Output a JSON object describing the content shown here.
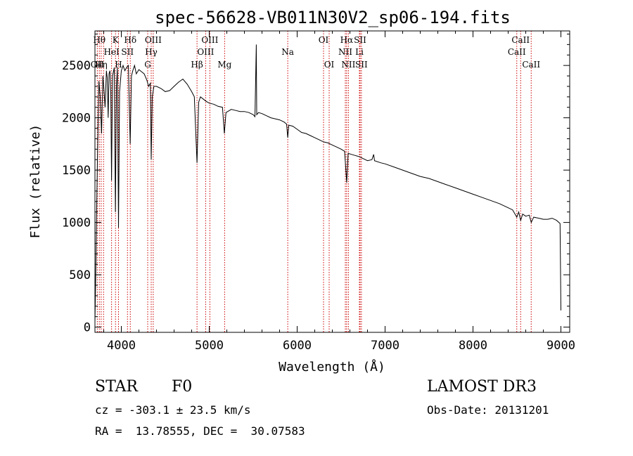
{
  "chart_data": {
    "type": "line",
    "title": "spec-56628-VB011N30V2_sp06-194.fits",
    "xlabel": "Wavelength (Å)",
    "ylabel": "Flux (relative)",
    "xlim": [
      3700,
      9100
    ],
    "ylim": [
      -50,
      2830
    ],
    "xticks": [
      4000,
      5000,
      6000,
      7000,
      8000,
      9000
    ],
    "yticks": [
      0,
      500,
      1000,
      1500,
      2000,
      2500
    ],
    "spectrum_points": [
      [
        3700,
        50
      ],
      [
        3712,
        650
      ],
      [
        3720,
        1150
      ],
      [
        3730,
        1700
      ],
      [
        3745,
        2350
      ],
      [
        3760,
        2200
      ],
      [
        3775,
        1850
      ],
      [
        3790,
        2400
      ],
      [
        3800,
        2300
      ],
      [
        3815,
        2100
      ],
      [
        3830,
        2450
      ],
      [
        3840,
        2380
      ],
      [
        3850,
        2000
      ],
      [
        3860,
        2420
      ],
      [
        3870,
        2450
      ],
      [
        3880,
        2250
      ],
      [
        3889,
        1400
      ],
      [
        3900,
        2400
      ],
      [
        3920,
        2480
      ],
      [
        3933,
        1100
      ],
      [
        3945,
        2300
      ],
      [
        3955,
        2480
      ],
      [
        3968,
        950
      ],
      [
        3980,
        2250
      ],
      [
        4000,
        2450
      ],
      [
        4020,
        2500
      ],
      [
        4040,
        2450
      ],
      [
        4060,
        2480
      ],
      [
        4080,
        2500
      ],
      [
        4101,
        1750
      ],
      [
        4115,
        2400
      ],
      [
        4130,
        2450
      ],
      [
        4150,
        2500
      ],
      [
        4170,
        2420
      ],
      [
        4200,
        2460
      ],
      [
        4230,
        2440
      ],
      [
        4260,
        2420
      ],
      [
        4290,
        2360
      ],
      [
        4310,
        2300
      ],
      [
        4330,
        2330
      ],
      [
        4340,
        1600
      ],
      [
        4352,
        2200
      ],
      [
        4370,
        2300
      ],
      [
        4400,
        2300
      ],
      [
        4450,
        2280
      ],
      [
        4500,
        2250
      ],
      [
        4550,
        2260
      ],
      [
        4600,
        2300
      ],
      [
        4650,
        2340
      ],
      [
        4700,
        2370
      ],
      [
        4750,
        2320
      ],
      [
        4800,
        2250
      ],
      [
        4830,
        2200
      ],
      [
        4861,
        1570
      ],
      [
        4880,
        2150
      ],
      [
        4900,
        2200
      ],
      [
        4930,
        2180
      ],
      [
        4960,
        2160
      ],
      [
        5000,
        2140
      ],
      [
        5050,
        2130
      ],
      [
        5100,
        2110
      ],
      [
        5150,
        2100
      ],
      [
        5172,
        1850
      ],
      [
        5190,
        2050
      ],
      [
        5250,
        2080
      ],
      [
        5300,
        2070
      ],
      [
        5350,
        2060
      ],
      [
        5400,
        2060
      ],
      [
        5450,
        2050
      ],
      [
        5500,
        2030
      ],
      [
        5520,
        2010
      ],
      [
        5535,
        2700
      ],
      [
        5540,
        2030
      ],
      [
        5560,
        2050
      ],
      [
        5600,
        2040
      ],
      [
        5650,
        2020
      ],
      [
        5700,
        2000
      ],
      [
        5750,
        1990
      ],
      [
        5800,
        1980
      ],
      [
        5850,
        1960
      ],
      [
        5880,
        1940
      ],
      [
        5893,
        1810
      ],
      [
        5905,
        1930
      ],
      [
        5950,
        1920
      ],
      [
        6000,
        1890
      ],
      [
        6050,
        1860
      ],
      [
        6100,
        1850
      ],
      [
        6150,
        1830
      ],
      [
        6200,
        1810
      ],
      [
        6250,
        1790
      ],
      [
        6300,
        1770
      ],
      [
        6350,
        1760
      ],
      [
        6400,
        1740
      ],
      [
        6450,
        1720
      ],
      [
        6500,
        1700
      ],
      [
        6540,
        1680
      ],
      [
        6563,
        1380
      ],
      [
        6580,
        1660
      ],
      [
        6620,
        1650
      ],
      [
        6660,
        1640
      ],
      [
        6700,
        1630
      ],
      [
        6750,
        1610
      ],
      [
        6800,
        1590
      ],
      [
        6850,
        1600
      ],
      [
        6870,
        1650
      ],
      [
        6880,
        1590
      ],
      [
        6950,
        1570
      ],
      [
        7000,
        1560
      ],
      [
        7100,
        1530
      ],
      [
        7200,
        1500
      ],
      [
        7300,
        1470
      ],
      [
        7400,
        1440
      ],
      [
        7500,
        1420
      ],
      [
        7600,
        1390
      ],
      [
        7700,
        1360
      ],
      [
        7800,
        1330
      ],
      [
        7900,
        1300
      ],
      [
        8000,
        1270
      ],
      [
        8100,
        1240
      ],
      [
        8200,
        1210
      ],
      [
        8300,
        1180
      ],
      [
        8400,
        1140
      ],
      [
        8450,
        1120
      ],
      [
        8498,
        1050
      ],
      [
        8520,
        1100
      ],
      [
        8542,
        1020
      ],
      [
        8565,
        1080
      ],
      [
        8600,
        1060
      ],
      [
        8640,
        1070
      ],
      [
        8662,
        1000
      ],
      [
        8690,
        1050
      ],
      [
        8750,
        1040
      ],
      [
        8800,
        1030
      ],
      [
        8850,
        1030
      ],
      [
        8900,
        1040
      ],
      [
        8950,
        1020
      ],
      [
        8990,
        990
      ],
      [
        9000,
        160
      ]
    ],
    "reference_lines": [
      {
        "wavelength": 3727,
        "label": "OII",
        "row": 3
      },
      {
        "wavelength": 3750,
        "label": "Hθ",
        "row": 1
      },
      {
        "wavelength": 3771,
        "label": "Hη",
        "row": 3
      },
      {
        "wavelength": 3798,
        "label": "",
        "row": 0
      },
      {
        "wavelength": 3889,
        "label": "HeI",
        "row": 2
      },
      {
        "wavelength": 3934,
        "label": "K",
        "row": 1
      },
      {
        "wavelength": 3968,
        "label": "H",
        "row": 3
      },
      {
        "wavelength": 4070,
        "label": "SII",
        "row": 2
      },
      {
        "wavelength": 4102,
        "label": "Hδ",
        "row": 1
      },
      {
        "wavelength": 4300,
        "label": "G",
        "row": 3
      },
      {
        "wavelength": 4340,
        "label": "Hγ",
        "row": 2
      },
      {
        "wavelength": 4363,
        "label": "OIII",
        "row": 1
      },
      {
        "wavelength": 4861,
        "label": "Hβ",
        "row": 3
      },
      {
        "wavelength": 4959,
        "label": "OIII",
        "row": 2
      },
      {
        "wavelength": 5007,
        "label": "OIII",
        "row": 1
      },
      {
        "wavelength": 5175,
        "label": "Mg",
        "row": 3
      },
      {
        "wavelength": 5893,
        "label": "Na",
        "row": 2
      },
      {
        "wavelength": 6300,
        "label": "OI",
        "row": 1
      },
      {
        "wavelength": 6364,
        "label": "OI",
        "row": 3
      },
      {
        "wavelength": 6548,
        "label": "NII",
        "row": 2
      },
      {
        "wavelength": 6563,
        "label": "Hα",
        "row": 1
      },
      {
        "wavelength": 6583,
        "label": "NII",
        "row": 3
      },
      {
        "wavelength": 6708,
        "label": "Li",
        "row": 2
      },
      {
        "wavelength": 6716,
        "label": "SII",
        "row": 1
      },
      {
        "wavelength": 6731,
        "label": "SII",
        "row": 3
      },
      {
        "wavelength": 8498,
        "label": "CaII",
        "row": 2
      },
      {
        "wavelength": 8542,
        "label": "CaII",
        "row": 1
      },
      {
        "wavelength": 8662,
        "label": "CaII",
        "row": 3
      }
    ],
    "line_color": "#000000",
    "reference_line_color": "#cc0000"
  },
  "info": {
    "object_class": "STAR",
    "subclass": "F0",
    "redshift": "cz = -303.1 ± 23.5 km/s",
    "coordinates": "RA =  13.78555, DEC =  30.07583",
    "survey": "LAMOST DR3",
    "obs_date": "Obs-Date: 20131201"
  }
}
